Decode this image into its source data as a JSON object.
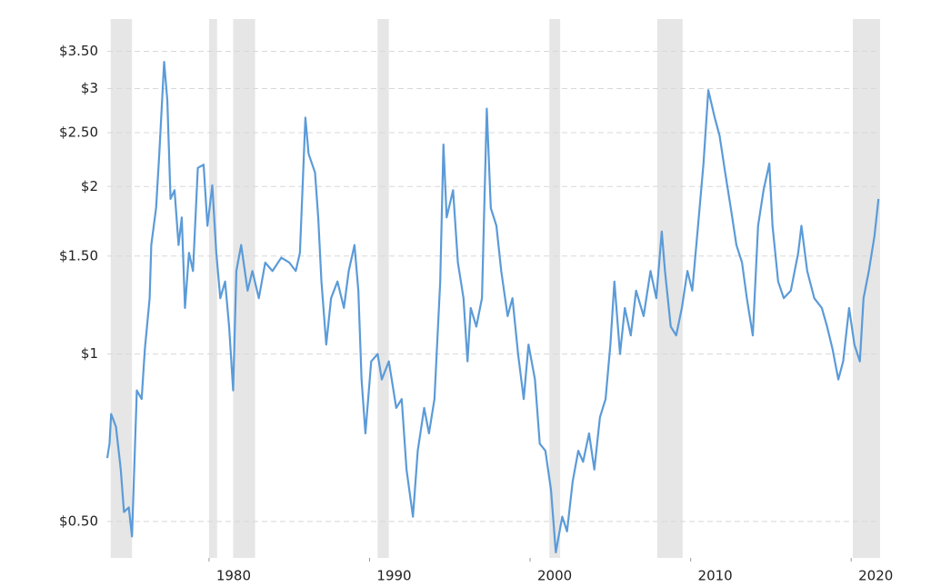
{
  "chart_data": {
    "type": "line",
    "log_y": true,
    "grid": true,
    "color": "#5b9bd8",
    "recession_color": "#e6e6e6",
    "xlim": [
      1973.66,
      2021.8
    ],
    "ylim": [
      0.43,
      4
    ],
    "xticks": [
      1980,
      1990,
      2000,
      2010,
      2020
    ],
    "yticks": [
      {
        "value": 0.5,
        "label": "$0.50"
      },
      {
        "value": 1,
        "label": "$1"
      },
      {
        "value": 1.5,
        "label": "$1.50"
      },
      {
        "value": 2,
        "label": "$2"
      },
      {
        "value": 2.5,
        "label": "$2.50"
      },
      {
        "value": 3,
        "label": "$3"
      },
      {
        "value": 3.5,
        "label": "$3.50"
      }
    ],
    "recessions": [
      [
        1973.87,
        1975.2
      ],
      [
        1980.0,
        1980.5
      ],
      [
        1981.5,
        1982.87
      ],
      [
        1990.5,
        1991.2
      ],
      [
        2001.2,
        2001.87
      ],
      [
        2007.92,
        2009.5
      ],
      [
        2020.1,
        2021.8
      ]
    ],
    "x": [
      1973.66,
      1973.8,
      1973.9,
      1974.2,
      1974.5,
      1974.7,
      1975.0,
      1975.2,
      1975.5,
      1975.8,
      1976.0,
      1976.3,
      1976.4,
      1976.7,
      1976.9,
      1977.2,
      1977.4,
      1977.6,
      1977.85,
      1978.1,
      1978.3,
      1978.5,
      1978.75,
      1979.0,
      1979.3,
      1979.66,
      1979.9,
      1980.2,
      1980.45,
      1980.7,
      1981.0,
      1981.25,
      1981.5,
      1981.7,
      1982.0,
      1982.4,
      1982.7,
      1983.1,
      1983.5,
      1983.95,
      1984.5,
      1985.0,
      1985.4,
      1985.66,
      1986.0,
      1986.2,
      1986.6,
      1986.8,
      1987.0,
      1987.3,
      1987.6,
      1988.0,
      1988.4,
      1988.7,
      1989.06,
      1989.3,
      1989.5,
      1989.74,
      1990.1,
      1990.5,
      1990.76,
      1991.2,
      1991.66,
      1992.0,
      1992.3,
      1992.7,
      1993.0,
      1993.4,
      1993.7,
      1994.04,
      1994.4,
      1994.6,
      1994.8,
      1995.2,
      1995.5,
      1995.85,
      1996.1,
      1996.3,
      1996.65,
      1997.0,
      1997.3,
      1997.55,
      1997.9,
      1998.2,
      1998.6,
      1998.9,
      1999.25,
      1999.6,
      1999.9,
      2000.3,
      2000.6,
      2000.95,
      2001.3,
      2001.6,
      2002.0,
      2002.3,
      2002.65,
      2003.0,
      2003.3,
      2003.67,
      2004.0,
      2004.35,
      2004.7,
      2005.0,
      2005.25,
      2005.6,
      2005.9,
      2006.27,
      2006.6,
      2007.07,
      2007.5,
      2007.86,
      2008.2,
      2008.4,
      2008.76,
      2009.1,
      2009.45,
      2009.8,
      2010.1,
      2010.46,
      2010.8,
      2011.1,
      2011.5,
      2011.8,
      2012.15,
      2012.5,
      2012.85,
      2013.2,
      2013.5,
      2013.87,
      2014.2,
      2014.54,
      2014.9,
      2015.1,
      2015.45,
      2015.8,
      2016.24,
      2016.7,
      2016.9,
      2017.26,
      2017.7,
      2018.17,
      2018.5,
      2018.84,
      2019.2,
      2019.5,
      2019.87,
      2020.2,
      2020.54,
      2020.77,
      2021.1,
      2021.45,
      2021.7
    ],
    "values": [
      0.65,
      0.69,
      0.78,
      0.74,
      0.62,
      0.52,
      0.53,
      0.47,
      0.86,
      0.83,
      1.02,
      1.26,
      1.57,
      1.83,
      2.29,
      3.35,
      2.86,
      1.9,
      1.97,
      1.57,
      1.76,
      1.21,
      1.52,
      1.41,
      2.16,
      2.19,
      1.7,
      2.01,
      1.52,
      1.26,
      1.35,
      1.12,
      0.86,
      1.41,
      1.57,
      1.3,
      1.41,
      1.26,
      1.46,
      1.41,
      1.49,
      1.46,
      1.41,
      1.52,
      2.66,
      2.29,
      2.12,
      1.76,
      1.35,
      1.04,
      1.26,
      1.35,
      1.21,
      1.41,
      1.57,
      1.3,
      0.9,
      0.72,
      0.97,
      1.0,
      0.9,
      0.97,
      0.8,
      0.83,
      0.62,
      0.51,
      0.67,
      0.8,
      0.72,
      0.83,
      1.35,
      2.38,
      1.76,
      1.97,
      1.46,
      1.26,
      0.97,
      1.21,
      1.12,
      1.26,
      2.76,
      1.83,
      1.7,
      1.41,
      1.17,
      1.26,
      1.0,
      0.83,
      1.04,
      0.9,
      0.69,
      0.67,
      0.57,
      0.44,
      0.51,
      0.48,
      0.59,
      0.67,
      0.64,
      0.72,
      0.62,
      0.77,
      0.83,
      1.04,
      1.35,
      1.0,
      1.21,
      1.08,
      1.3,
      1.17,
      1.41,
      1.26,
      1.66,
      1.41,
      1.12,
      1.08,
      1.21,
      1.41,
      1.3,
      1.7,
      2.2,
      2.98,
      2.66,
      2.47,
      2.12,
      1.83,
      1.57,
      1.46,
      1.26,
      1.08,
      1.7,
      1.97,
      2.2,
      1.7,
      1.35,
      1.26,
      1.3,
      1.52,
      1.7,
      1.41,
      1.26,
      1.21,
      1.12,
      1.02,
      0.9,
      0.97,
      1.21,
      1.04,
      0.97,
      1.26,
      1.41,
      1.63,
      1.9
    ]
  }
}
